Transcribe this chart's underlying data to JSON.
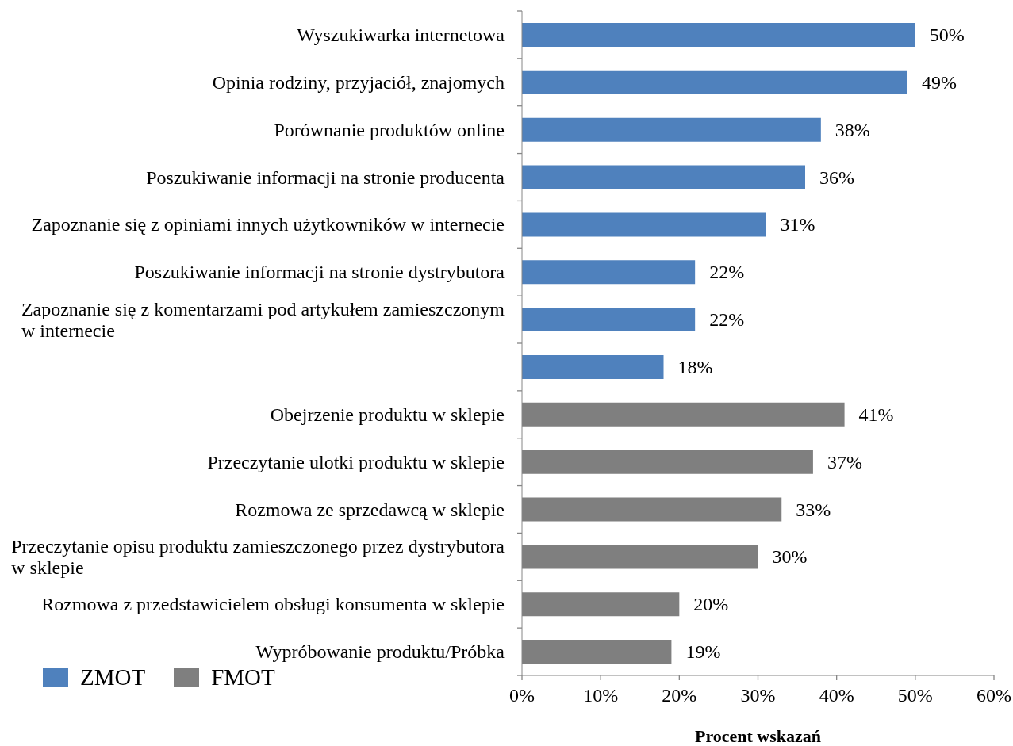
{
  "chart_data": {
    "type": "bar",
    "orientation": "horizontal",
    "stacked": true,
    "categories": [
      "Wyszukiwarka internetowa",
      "Opinia rodziny, przyjaciół, znajomych",
      "Porównanie produktów online",
      "Poszukiwanie informacji na stronie producenta",
      "Zapoznanie się z opiniami innych użytkowników w internecie",
      "Poszukiwanie informacji na stronie dystrybutora",
      "Zapoznanie się z komentarzami pod artykułem zamieszczonym w internecie",
      null,
      "Obejrzenie produktu w sklepie",
      "Przeczytanie ulotki produktu w sklepie",
      "Rozmowa ze sprzedawcą w sklepie",
      "Przeczytanie opisu produktu zamieszczonego przez dystrybutora w sklepie",
      "Rozmowa z przedstawicielem obsługi konsumenta w sklepie",
      "Wypróbowanie produktu/Próbka"
    ],
    "series": [
      {
        "name": "ZMOT",
        "color": "#4f81bd",
        "values": [
          50,
          49,
          38,
          36,
          31,
          22,
          22,
          18,
          null,
          null,
          null,
          null,
          null,
          null
        ],
        "value_labels": [
          "50%",
          "49%",
          "38%",
          "36%",
          "31%",
          "22%",
          "22%",
          "18%",
          null,
          null,
          null,
          null,
          null,
          null
        ]
      },
      {
        "name": "FMOT",
        "color": "#7f7f7f",
        "values": [
          null,
          null,
          null,
          null,
          null,
          null,
          null,
          null,
          41,
          37,
          33,
          30,
          20,
          19
        ],
        "value_labels": [
          null,
          null,
          null,
          null,
          null,
          null,
          null,
          null,
          "41%",
          "37%",
          "33%",
          "30%",
          "20%",
          "19%"
        ]
      }
    ],
    "xlim": [
      0,
      60
    ],
    "xticks": [
      {
        "value": 0,
        "label": "0%"
      },
      {
        "value": 10,
        "label": "10%"
      },
      {
        "value": 20,
        "label": "20%"
      },
      {
        "value": 30,
        "label": "30%"
      },
      {
        "value": 40,
        "label": "40%"
      },
      {
        "value": 50,
        "label": "50%"
      },
      {
        "value": 60,
        "label": "60%"
      }
    ],
    "xlabel": "Procent wskazań",
    "legend": "bottom left"
  }
}
